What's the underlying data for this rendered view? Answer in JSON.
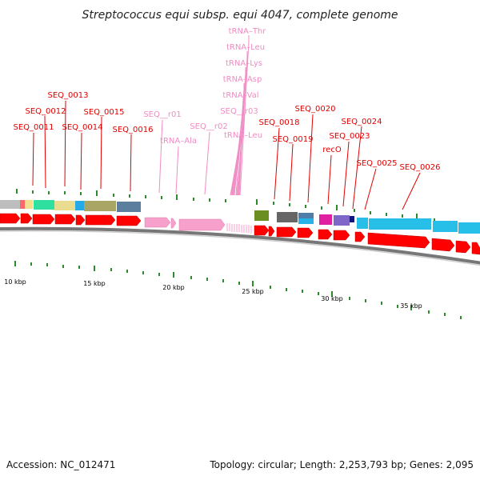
{
  "title": "Streptococcus equi subsp. equi 4047, complete genome",
  "footer": {
    "accession": "Accession: NC_012471",
    "summary": "Topology: circular; Length: 2,253,793 bp; Genes: 2,095"
  },
  "colors": {
    "cds": "#ff0000",
    "rna": "#f7a0cc",
    "backbone": "#888888",
    "tick": "#2c8c2c",
    "label_cds": "#e00000",
    "label_rna": "#f08cc4"
  },
  "scale_ticks": [
    "10 kbp",
    "15 kbp",
    "20 kbp",
    "25 kbp",
    "30 kbp",
    "35 kbp"
  ],
  "labels": {
    "seq_0011": "SEQ_0011",
    "seq_0012": "SEQ_0012",
    "seq_0013": "SEQ_0013",
    "seq_0014": "SEQ_0014",
    "seq_0015": "SEQ_0015",
    "seq_0016": "SEQ_0016",
    "seq_r01": "SEQ__r01",
    "trna_ala": "tRNA–Ala",
    "seq_r02": "SEQ__r02",
    "trna_thr": "tRNA–Thr",
    "trna_leu_1": "tRNA–Leu",
    "trna_lys": "tRNA–Lys",
    "trna_asp": "tRNA–Asp",
    "trna_val": "tRNA–Val",
    "seq_r03": "SEQ__r03",
    "trna_leu_2": "tRNA–Leu",
    "seq_0018": "SEQ_0018",
    "seq_0019": "SEQ_0019",
    "seq_0020": "SEQ_0020",
    "reco": "recO",
    "seq_0023": "SEQ_0023",
    "seq_0024": "SEQ_0024",
    "seq_0025": "SEQ_0025",
    "seq_0026": "SEQ_0026"
  }
}
